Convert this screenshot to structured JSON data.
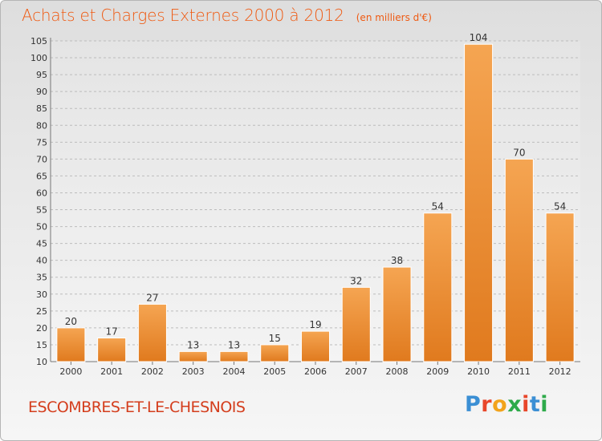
{
  "header": {
    "title": "Achats et Charges Externes 2000 à 2012",
    "subtitle": "(en milliers d'€)"
  },
  "footer": {
    "commune": "ESCOMBRES-ET-LE-CHESNOIS",
    "logo_text": "Proxiti"
  },
  "colors": {
    "title": "#ef5a12",
    "bar_light": "#f5a552",
    "bar_dark": "#e07a1e",
    "commune": "#d43d1c"
  },
  "chart_data": {
    "type": "bar",
    "title": "Achats et Charges Externes 2000 à 2012",
    "subtitle": "(en milliers d'€)",
    "categories": [
      "2000",
      "2001",
      "2002",
      "2003",
      "2004",
      "2005",
      "2006",
      "2007",
      "2008",
      "2009",
      "2010",
      "2011",
      "2012"
    ],
    "values": [
      20,
      17,
      27,
      13,
      13,
      15,
      19,
      32,
      38,
      54,
      104,
      70,
      54
    ],
    "ylim": [
      10,
      105
    ],
    "yticks": [
      10,
      15,
      20,
      25,
      30,
      35,
      40,
      45,
      50,
      55,
      60,
      65,
      70,
      75,
      80,
      85,
      90,
      95,
      100,
      105
    ],
    "grid": true,
    "data_labels": true,
    "xlabel": "",
    "ylabel": ""
  }
}
